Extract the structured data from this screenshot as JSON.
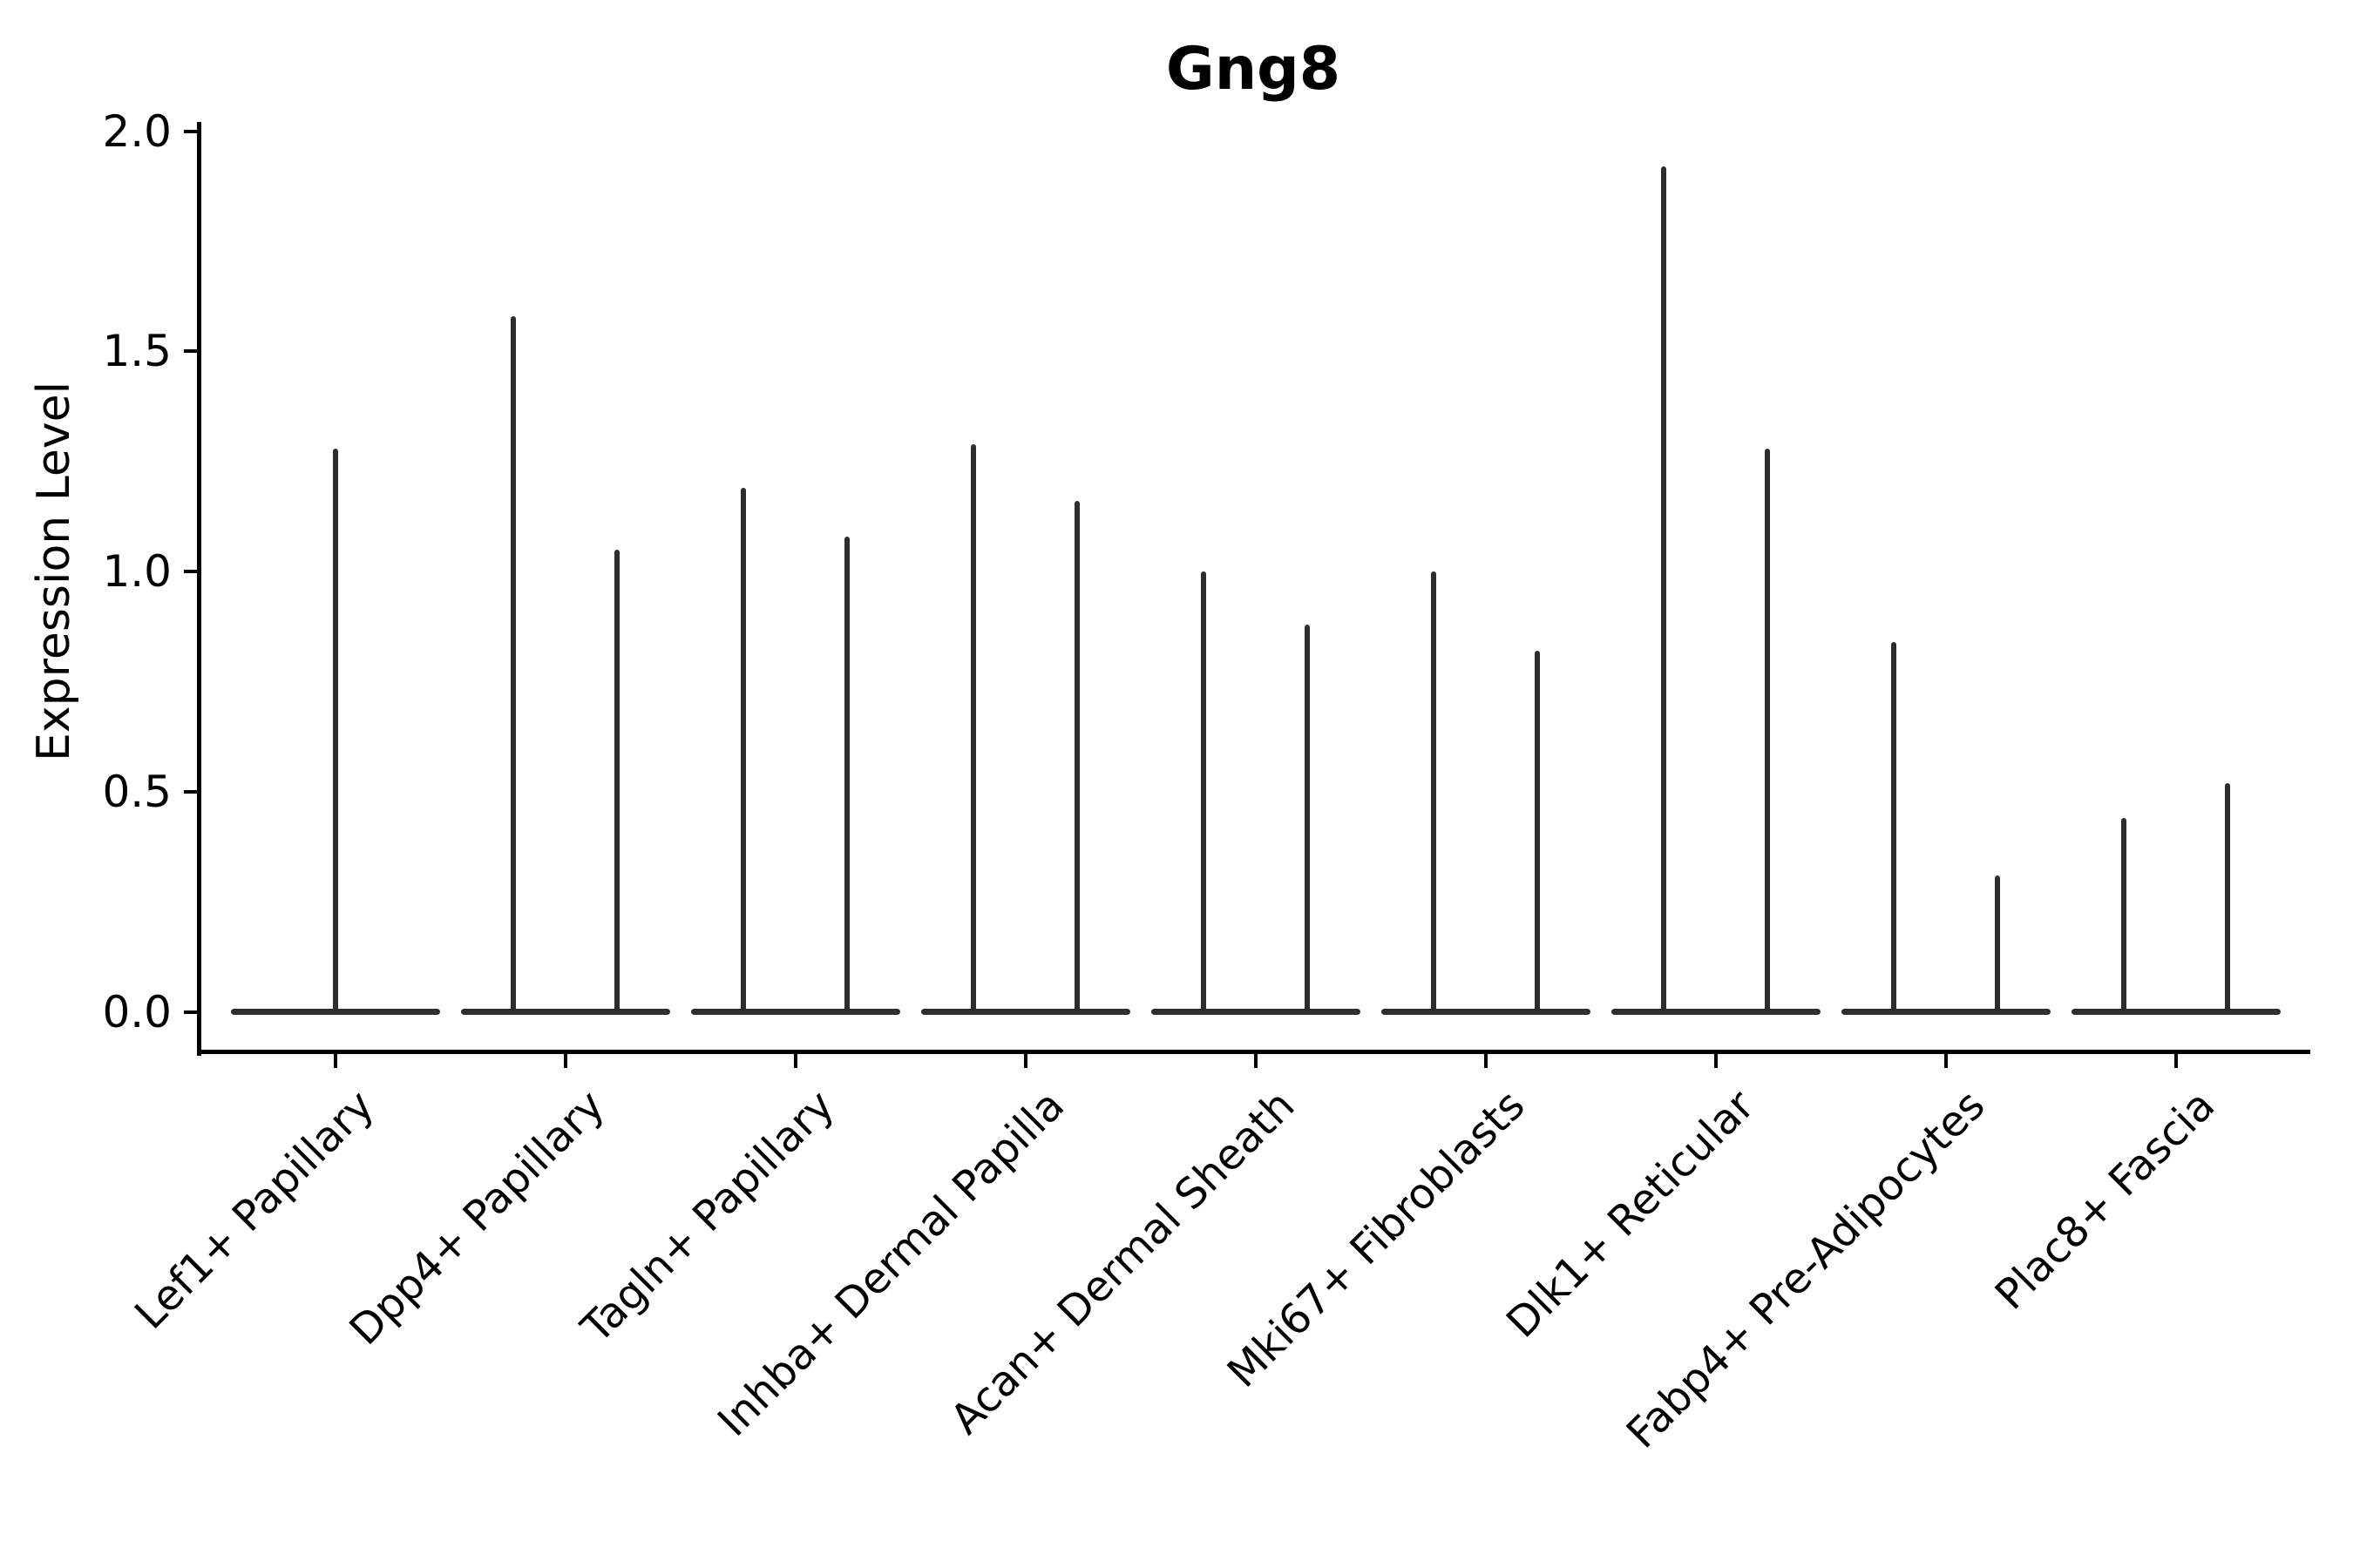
{
  "chart_data": {
    "type": "violin",
    "title": "Gng8",
    "ylabel": "Expression Level",
    "ylim": [
      0.0,
      2.0
    ],
    "yticks": [
      "0.0",
      "0.5",
      "1.0",
      "1.5",
      "2.0"
    ],
    "grid": false,
    "legend": null,
    "violin_color": "#2e2e2e",
    "axis_color": "#000000",
    "categories": [
      "Lef1+ Papillary",
      "Dpp4+ Papillary",
      "Tagln+ Papillary",
      "Inhba+ Dermal Papilla",
      "Acan+ Dermal Sheath",
      "Mki67+ Fibroblasts",
      "Dlk1+ Reticular",
      "Fabp4+ Pre-Adipocytes",
      "Plac8+ Fascia"
    ],
    "series": [
      {
        "category": "Lef1+ Papillary",
        "spike_values": [
          1.28
        ]
      },
      {
        "category": "Dpp4+ Papillary",
        "spike_values": [
          1.58,
          1.05
        ]
      },
      {
        "category": "Tagln+ Papillary",
        "spike_values": [
          1.19,
          1.08
        ]
      },
      {
        "category": "Inhba+ Dermal Papilla",
        "spike_values": [
          1.29,
          1.16
        ]
      },
      {
        "category": "Acan+ Dermal Sheath",
        "spike_values": [
          1.0,
          0.88
        ]
      },
      {
        "category": "Mki67+ Fibroblasts",
        "spike_values": [
          1.0,
          0.82
        ]
      },
      {
        "category": "Dlk1+ Reticular",
        "spike_values": [
          1.92,
          1.28
        ]
      },
      {
        "category": "Fabp4+ Pre-Adipocytes",
        "spike_values": [
          0.84,
          0.31
        ]
      },
      {
        "category": "Plac8+ Fascia",
        "spike_values": [
          0.44,
          0.52
        ]
      }
    ],
    "note": "Each category shows a width-collapsed violin: a flat base bar at 0 and thin density spikes reaching the listed expression values."
  }
}
